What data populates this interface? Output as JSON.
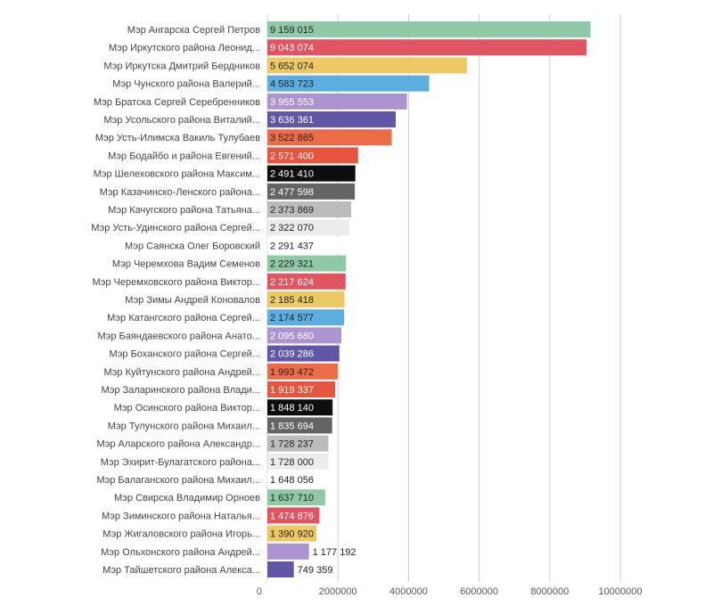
{
  "chart_data": {
    "type": "bar",
    "orientation": "horizontal",
    "title": "",
    "xlabel": "",
    "ylabel": "",
    "xlim": [
      0,
      10000000
    ],
    "x_ticks": [
      0,
      2000000,
      4000000,
      6000000,
      8000000,
      10000000
    ],
    "x_tick_labels": [
      "0",
      "2000000",
      "4000000",
      "6000000",
      "8000000",
      "10000000"
    ],
    "grid": true,
    "legend": "none",
    "bars": [
      {
        "label": "Мэр Ангарска Сергей Петров",
        "value": 9159015,
        "display": "9 159 015",
        "color": "#8fc9a8",
        "text_color": "#222222"
      },
      {
        "label": "Мэр Иркутского района Леонид...",
        "value": 9043074,
        "display": "9 043 074",
        "color": "#e05561",
        "text_color": "#ffffff"
      },
      {
        "label": "Мэр Иркутска Дмитрий Бердников",
        "value": 5652074,
        "display": "5 652 074",
        "color": "#edc964",
        "text_color": "#222222"
      },
      {
        "label": "Мэр Чунского района Валерий...",
        "value": 4583723,
        "display": "4 583 723",
        "color": "#5daee0",
        "text_color": "#222222"
      },
      {
        "label": "Мэр Братска Сергей Серебренников",
        "value": 3955553,
        "display": "3 955 553",
        "color": "#ac94d0",
        "text_color": "#ffffff"
      },
      {
        "label": "Мэр Усольского района Виталий...",
        "value": 3636361,
        "display": "3 636 361",
        "color": "#6257a6",
        "text_color": "#ffffff"
      },
      {
        "label": "Мэр Усть-Илимска Вакиль Тулубаев",
        "value": 3522865,
        "display": "3 522 865",
        "color": "#ed6c48",
        "text_color": "#222222"
      },
      {
        "label": "Мэр Бодайбо и района Евгений...",
        "value": 2571400,
        "display": "2 571 400",
        "color": "#e5553f",
        "text_color": "#ffffff"
      },
      {
        "label": "Мэр Шелеховского района Максим...",
        "value": 2491410,
        "display": "2 491 410",
        "color": "#0e0e0e",
        "text_color": "#ffffff"
      },
      {
        "label": "Мэр Казачинско-Ленского района...",
        "value": 2477598,
        "display": "2 477 598",
        "color": "#646464",
        "text_color": "#ffffff"
      },
      {
        "label": "Мэр Качугского района Татьяна...",
        "value": 2373869,
        "display": "2 373 869",
        "color": "#bcbcbc",
        "text_color": "#222222"
      },
      {
        "label": "Мэр Усть-Удинского района Сергей...",
        "value": 2322070,
        "display": "2 322 070",
        "color": "#ececec",
        "text_color": "#222222"
      },
      {
        "label": "Мэр Саянска Олег Боровский",
        "value": 2291437,
        "display": "2 291 437",
        "color": "#ffffff",
        "text_color": "#222222"
      },
      {
        "label": "Мэр Черемхова Вадим Семенов",
        "value": 2229321,
        "display": "2 229 321",
        "color": "#8fc9a8",
        "text_color": "#222222"
      },
      {
        "label": "Мэр Черемховского района Виктор...",
        "value": 2217624,
        "display": "2 217 624",
        "color": "#e05561",
        "text_color": "#ffffff"
      },
      {
        "label": "Мэр Зимы Андрей Коновалов",
        "value": 2185418,
        "display": "2 185 418",
        "color": "#edc964",
        "text_color": "#222222"
      },
      {
        "label": "Мэр Катангского района Сергей...",
        "value": 2174577,
        "display": "2 174 577",
        "color": "#5daee0",
        "text_color": "#222222"
      },
      {
        "label": "Мэр Баяндаевского района Анато...",
        "value": 2095680,
        "display": "2 095 680",
        "color": "#ac94d0",
        "text_color": "#ffffff"
      },
      {
        "label": "Мэр Боханского района Сергей...",
        "value": 2039286,
        "display": "2 039 286",
        "color": "#6257a6",
        "text_color": "#ffffff"
      },
      {
        "label": "Мэр Куйтунского района Андрей...",
        "value": 1993472,
        "display": "1 993 472",
        "color": "#ed6c48",
        "text_color": "#222222"
      },
      {
        "label": "Мэр Заларинского района Влади...",
        "value": 1919337,
        "display": "1 919 337",
        "color": "#e5553f",
        "text_color": "#ffffff"
      },
      {
        "label": "Мэр Осинского района Виктор...",
        "value": 1848140,
        "display": "1 848 140",
        "color": "#0e0e0e",
        "text_color": "#ffffff"
      },
      {
        "label": "Мэр Тулунского района Михаил...",
        "value": 1835694,
        "display": "1 835 694",
        "color": "#646464",
        "text_color": "#ffffff"
      },
      {
        "label": "Мэр Аларского района Александр...",
        "value": 1728237,
        "display": "1 728 237",
        "color": "#bcbcbc",
        "text_color": "#222222"
      },
      {
        "label": "Мэр Эхирит-Булагатского района...",
        "value": 1728000,
        "display": "1 728 000",
        "color": "#ececec",
        "text_color": "#222222"
      },
      {
        "label": "Мэр Балаганского района Михаил...",
        "value": 1648056,
        "display": "1 648 056",
        "color": "#ffffff",
        "text_color": "#222222"
      },
      {
        "label": "Мэр Свирска Владимир Орноев",
        "value": 1637710,
        "display": "1 637 710",
        "color": "#8fc9a8",
        "text_color": "#222222"
      },
      {
        "label": "Мэр Зиминского района Наталья...",
        "value": 1474876,
        "display": "1 474 876",
        "color": "#e05561",
        "text_color": "#ffffff"
      },
      {
        "label": "Мэр Жигаловского района Игорь...",
        "value": 1390920,
        "display": "1 390 920",
        "color": "#edc964",
        "text_color": "#222222"
      },
      {
        "label": "Мэр Ольхонского района Андрей...",
        "value": 1177192,
        "display": "1 177 192",
        "color": "#ac94d0",
        "text_color": "#222222",
        "label_outside": true
      },
      {
        "label": "Мэр Тайшетского района Алекса...",
        "value": 749359,
        "display": "749 359",
        "color": "#6257a6",
        "text_color": "#222222",
        "label_outside": true
      }
    ]
  }
}
